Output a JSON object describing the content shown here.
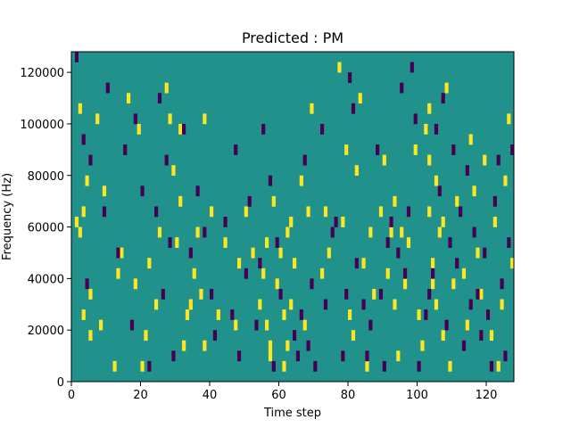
{
  "chart_data": {
    "type": "heatmap",
    "title": "Predicted : PM",
    "xlabel": "Time step",
    "ylabel": "Frequency (Hz)",
    "xlim": [
      0,
      128
    ],
    "ylim": [
      0,
      128000
    ],
    "x_ticks": [
      0,
      20,
      40,
      60,
      80,
      100,
      120
    ],
    "y_ticks": [
      0,
      20000,
      40000,
      60000,
      80000,
      100000,
      120000
    ],
    "x_tick_labels": [
      "0",
      "20",
      "40",
      "60",
      "80",
      "100",
      "120"
    ],
    "y_tick_labels": [
      "0",
      "20000",
      "40000",
      "60000",
      "80000",
      "100000",
      "120000"
    ],
    "grid": false,
    "legend": "none",
    "colormap": "viridis",
    "colors": {
      "low": "#440154",
      "mid": "#21918c",
      "high": "#fde725"
    },
    "n_time_steps": 128,
    "n_freq_bins": 32,
    "bin_height_hz": 4000,
    "background_value": 0,
    "high_cells": [
      [
        1,
        60000
      ],
      [
        2,
        56000
      ],
      [
        3,
        64000
      ],
      [
        5,
        32000
      ],
      [
        4,
        76000
      ],
      [
        2,
        104000
      ],
      [
        7,
        100000
      ],
      [
        3,
        24000
      ],
      [
        5,
        16000
      ],
      [
        8,
        20000
      ],
      [
        9,
        72000
      ],
      [
        12,
        4000
      ],
      [
        13,
        40000
      ],
      [
        14,
        48000
      ],
      [
        16,
        108000
      ],
      [
        18,
        36000
      ],
      [
        19,
        96000
      ],
      [
        20,
        4000
      ],
      [
        21,
        16000
      ],
      [
        22,
        44000
      ],
      [
        24,
        28000
      ],
      [
        25,
        56000
      ],
      [
        27,
        112000
      ],
      [
        28,
        100000
      ],
      [
        29,
        80000
      ],
      [
        30,
        52000
      ],
      [
        31,
        96000
      ],
      [
        31,
        68000
      ],
      [
        32,
        12000
      ],
      [
        33,
        24000
      ],
      [
        34,
        28000
      ],
      [
        35,
        40000
      ],
      [
        36,
        56000
      ],
      [
        37,
        32000
      ],
      [
        38,
        100000
      ],
      [
        38,
        12000
      ],
      [
        40,
        64000
      ],
      [
        42,
        24000
      ],
      [
        44,
        52000
      ],
      [
        47,
        20000
      ],
      [
        48,
        44000
      ],
      [
        50,
        64000
      ],
      [
        52,
        48000
      ],
      [
        54,
        28000
      ],
      [
        55,
        40000
      ],
      [
        56,
        52000
      ],
      [
        57,
        8000
      ],
      [
        56,
        20000
      ],
      [
        57,
        12000
      ],
      [
        58,
        68000
      ],
      [
        59,
        36000
      ],
      [
        60,
        48000
      ],
      [
        61,
        24000
      ],
      [
        61,
        4000
      ],
      [
        62,
        12000
      ],
      [
        62,
        56000
      ],
      [
        63,
        60000
      ],
      [
        63,
        28000
      ],
      [
        64,
        44000
      ],
      [
        66,
        76000
      ],
      [
        67,
        20000
      ],
      [
        68,
        64000
      ],
      [
        69,
        104000
      ],
      [
        72,
        40000
      ],
      [
        73,
        64000
      ],
      [
        74,
        48000
      ],
      [
        77,
        120000
      ],
      [
        78,
        60000
      ],
      [
        79,
        88000
      ],
      [
        80,
        24000
      ],
      [
        81,
        16000
      ],
      [
        82,
        80000
      ],
      [
        83,
        108000
      ],
      [
        84,
        44000
      ],
      [
        85,
        4000
      ],
      [
        86,
        56000
      ],
      [
        87,
        32000
      ],
      [
        89,
        64000
      ],
      [
        90,
        84000
      ],
      [
        91,
        40000
      ],
      [
        92,
        56000
      ],
      [
        93,
        68000
      ],
      [
        93,
        28000
      ],
      [
        94,
        8000
      ],
      [
        95,
        56000
      ],
      [
        96,
        36000
      ],
      [
        97,
        52000
      ],
      [
        99,
        88000
      ],
      [
        100,
        24000
      ],
      [
        101,
        12000
      ],
      [
        102,
        96000
      ],
      [
        103,
        84000
      ],
      [
        103,
        64000
      ],
      [
        104,
        44000
      ],
      [
        104,
        36000
      ],
      [
        105,
        28000
      ],
      [
        105,
        76000
      ],
      [
        103,
        104000
      ],
      [
        106,
        56000
      ],
      [
        107,
        16000
      ],
      [
        107,
        60000
      ],
      [
        108,
        112000
      ],
      [
        109,
        4000
      ],
      [
        110,
        36000
      ],
      [
        111,
        68000
      ],
      [
        113,
        40000
      ],
      [
        114,
        20000
      ],
      [
        115,
        92000
      ],
      [
        116,
        72000
      ],
      [
        117,
        48000
      ],
      [
        118,
        32000
      ],
      [
        119,
        84000
      ],
      [
        120,
        24000
      ],
      [
        121,
        16000
      ],
      [
        122,
        60000
      ],
      [
        123,
        4000
      ],
      [
        124,
        28000
      ],
      [
        125,
        76000
      ],
      [
        126,
        100000
      ],
      [
        127,
        44000
      ]
    ],
    "low_cells": [
      [
        1,
        124000
      ],
      [
        3,
        92000
      ],
      [
        5,
        84000
      ],
      [
        4,
        36000
      ],
      [
        9,
        64000
      ],
      [
        10,
        112000
      ],
      [
        13,
        48000
      ],
      [
        15,
        88000
      ],
      [
        17,
        20000
      ],
      [
        18,
        100000
      ],
      [
        20,
        72000
      ],
      [
        22,
        4000
      ],
      [
        24,
        64000
      ],
      [
        25,
        108000
      ],
      [
        26,
        32000
      ],
      [
        27,
        84000
      ],
      [
        28,
        52000
      ],
      [
        29,
        8000
      ],
      [
        32,
        96000
      ],
      [
        34,
        48000
      ],
      [
        36,
        72000
      ],
      [
        38,
        56000
      ],
      [
        40,
        32000
      ],
      [
        41,
        16000
      ],
      [
        44,
        60000
      ],
      [
        46,
        24000
      ],
      [
        47,
        88000
      ],
      [
        48,
        8000
      ],
      [
        50,
        40000
      ],
      [
        51,
        68000
      ],
      [
        53,
        20000
      ],
      [
        54,
        44000
      ],
      [
        55,
        96000
      ],
      [
        57,
        76000
      ],
      [
        58,
        4000
      ],
      [
        59,
        52000
      ],
      [
        60,
        32000
      ],
      [
        64,
        16000
      ],
      [
        65,
        8000
      ],
      [
        66,
        24000
      ],
      [
        67,
        84000
      ],
      [
        68,
        12000
      ],
      [
        69,
        36000
      ],
      [
        70,
        4000
      ],
      [
        72,
        96000
      ],
      [
        73,
        28000
      ],
      [
        75,
        56000
      ],
      [
        76,
        60000
      ],
      [
        78,
        8000
      ],
      [
        79,
        32000
      ],
      [
        80,
        116000
      ],
      [
        81,
        104000
      ],
      [
        82,
        44000
      ],
      [
        84,
        28000
      ],
      [
        85,
        8000
      ],
      [
        86,
        20000
      ],
      [
        88,
        88000
      ],
      [
        89,
        32000
      ],
      [
        90,
        4000
      ],
      [
        91,
        52000
      ],
      [
        92,
        60000
      ],
      [
        94,
        48000
      ],
      [
        95,
        112000
      ],
      [
        96,
        40000
      ],
      [
        97,
        64000
      ],
      [
        98,
        120000
      ],
      [
        99,
        100000
      ],
      [
        100,
        4000
      ],
      [
        102,
        24000
      ],
      [
        103,
        32000
      ],
      [
        104,
        40000
      ],
      [
        105,
        96000
      ],
      [
        106,
        72000
      ],
      [
        107,
        108000
      ],
      [
        108,
        20000
      ],
      [
        109,
        52000
      ],
      [
        110,
        88000
      ],
      [
        111,
        44000
      ],
      [
        112,
        64000
      ],
      [
        113,
        12000
      ],
      [
        114,
        80000
      ],
      [
        115,
        28000
      ],
      [
        116,
        56000
      ],
      [
        117,
        32000
      ],
      [
        118,
        16000
      ],
      [
        119,
        48000
      ],
      [
        120,
        24000
      ],
      [
        121,
        4000
      ],
      [
        122,
        68000
      ],
      [
        123,
        84000
      ],
      [
        124,
        36000
      ],
      [
        125,
        8000
      ],
      [
        126,
        52000
      ],
      [
        127,
        88000
      ]
    ]
  }
}
